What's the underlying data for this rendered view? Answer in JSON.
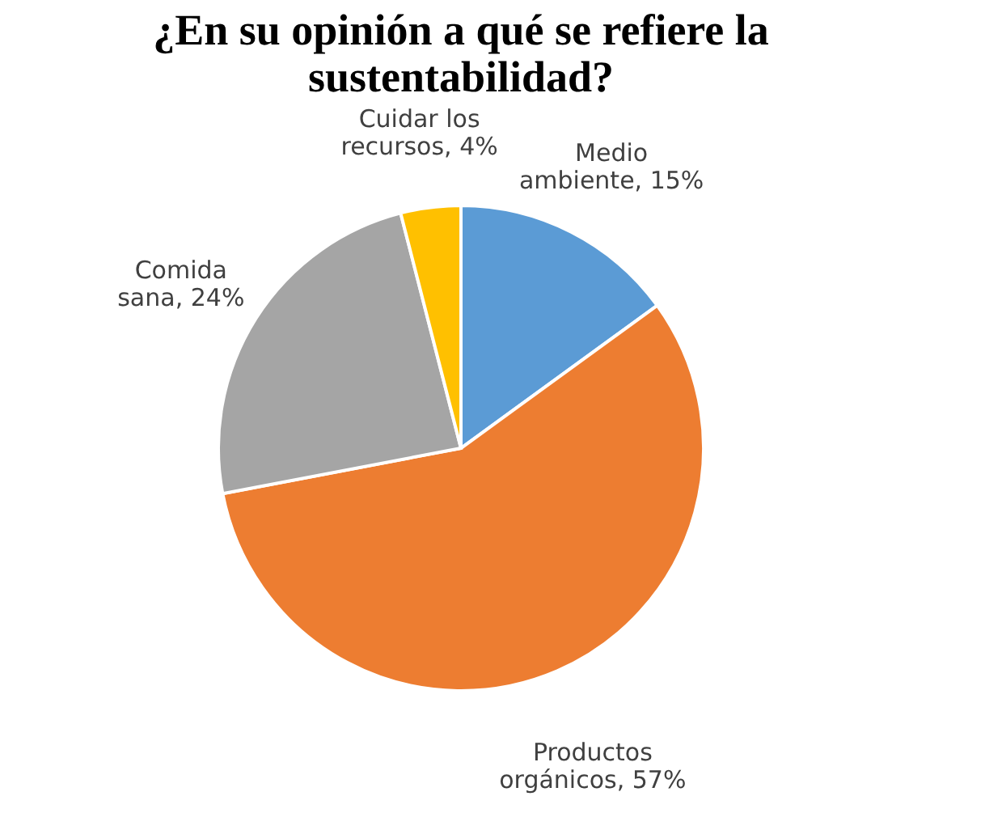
{
  "chart_data": {
    "type": "pie",
    "title": "¿En su opinión a qué se refiere la sustentabilidad?",
    "categories": [
      "Medio ambiente",
      "Productos orgánicos",
      "Comida sana",
      "Cuidar los recursos"
    ],
    "values": [
      15,
      57,
      24,
      4
    ],
    "value_labels": [
      "15%",
      "57%",
      "24%",
      "4%"
    ],
    "colors": [
      "#5b9bd5",
      "#ed7d31",
      "#a5a5a5",
      "#ffc000"
    ]
  }
}
